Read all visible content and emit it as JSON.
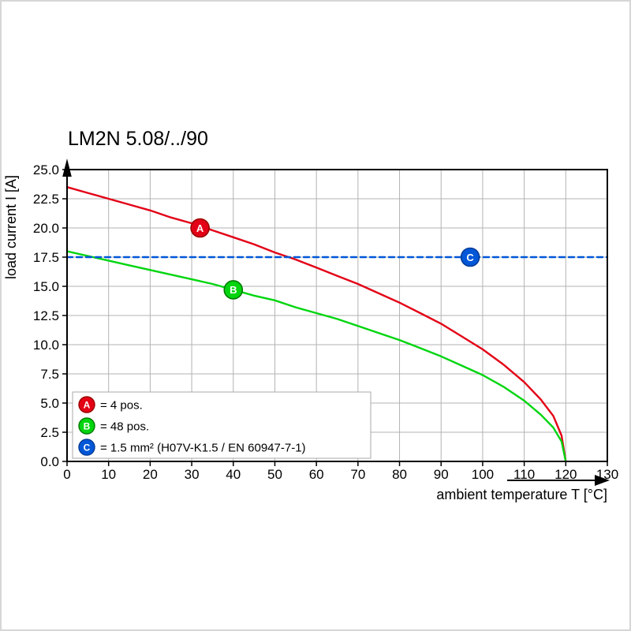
{
  "chart_data": {
    "type": "line",
    "title": "LM2N 5.08/../90",
    "xlabel": "ambient temperature T [°C]",
    "ylabel": "load current I [A]",
    "xlim": [
      0,
      130
    ],
    "ylim": [
      0,
      25
    ],
    "grid": true,
    "grid_color": "#b3b3b3",
    "axis_color": "#000000",
    "legend_position": "lower left",
    "x_ticks": [
      0,
      10,
      20,
      30,
      40,
      50,
      60,
      70,
      80,
      90,
      100,
      110,
      120,
      130
    ],
    "x_tick_labels": [
      "0",
      "10",
      "20",
      "30",
      "40",
      "50",
      "60",
      "70",
      "80",
      "90",
      "100",
      "110",
      "120",
      "130"
    ],
    "y_ticks": [
      0,
      2.5,
      5,
      7.5,
      10,
      12.5,
      15,
      17.5,
      20,
      22.5,
      25
    ],
    "y_tick_labels": [
      "0.0",
      "2.5",
      "5.0",
      "7.5",
      "10.0",
      "12.5",
      "15.0",
      "17.5",
      "20.0",
      "22.5",
      "25.0"
    ],
    "series": [
      {
        "name": "A",
        "letter": "A",
        "label": "= 4 pos.",
        "color": "#e30016",
        "edge": "#9a0000",
        "dash": false,
        "marker": {
          "x": 32,
          "y": 20
        },
        "points": [
          [
            0,
            23.5
          ],
          [
            5,
            23.0
          ],
          [
            10,
            22.5
          ],
          [
            15,
            22.0
          ],
          [
            20,
            21.5
          ],
          [
            25,
            20.9
          ],
          [
            30,
            20.4
          ],
          [
            35,
            19.8
          ],
          [
            40,
            19.2
          ],
          [
            45,
            18.6
          ],
          [
            50,
            17.9
          ],
          [
            55,
            17.3
          ],
          [
            60,
            16.6
          ],
          [
            65,
            15.9
          ],
          [
            70,
            15.2
          ],
          [
            75,
            14.4
          ],
          [
            80,
            13.6
          ],
          [
            85,
            12.7
          ],
          [
            90,
            11.8
          ],
          [
            95,
            10.7
          ],
          [
            100,
            9.6
          ],
          [
            105,
            8.3
          ],
          [
            110,
            6.8
          ],
          [
            114,
            5.3
          ],
          [
            117,
            3.9
          ],
          [
            119,
            2.2
          ],
          [
            120,
            0
          ]
        ]
      },
      {
        "name": "B",
        "letter": "B",
        "label": "= 48 pos.",
        "color": "#00d50f",
        "edge": "#007a00",
        "dash": false,
        "marker": {
          "x": 40,
          "y": 14.7
        },
        "points": [
          [
            0,
            18.0
          ],
          [
            5,
            17.6
          ],
          [
            10,
            17.2
          ],
          [
            15,
            16.8
          ],
          [
            20,
            16.4
          ],
          [
            25,
            16.0
          ],
          [
            30,
            15.6
          ],
          [
            35,
            15.2
          ],
          [
            40,
            14.7
          ],
          [
            45,
            14.2
          ],
          [
            50,
            13.8
          ],
          [
            55,
            13.2
          ],
          [
            60,
            12.7
          ],
          [
            65,
            12.2
          ],
          [
            70,
            11.6
          ],
          [
            75,
            11.0
          ],
          [
            80,
            10.4
          ],
          [
            85,
            9.7
          ],
          [
            90,
            9.0
          ],
          [
            95,
            8.2
          ],
          [
            100,
            7.4
          ],
          [
            105,
            6.4
          ],
          [
            110,
            5.2
          ],
          [
            114,
            4.0
          ],
          [
            117,
            2.9
          ],
          [
            119,
            1.7
          ],
          [
            120,
            0
          ]
        ]
      },
      {
        "name": "C",
        "letter": "C",
        "label": "= 1.5 mm² (H07V-K1.5 / EN 60947-7-1)",
        "color": "#0057d8",
        "edge": "#003b97",
        "dash": true,
        "marker": {
          "x": 97,
          "y": 17.5
        },
        "points": [
          [
            0,
            17.5
          ],
          [
            130,
            17.5
          ]
        ]
      }
    ]
  }
}
